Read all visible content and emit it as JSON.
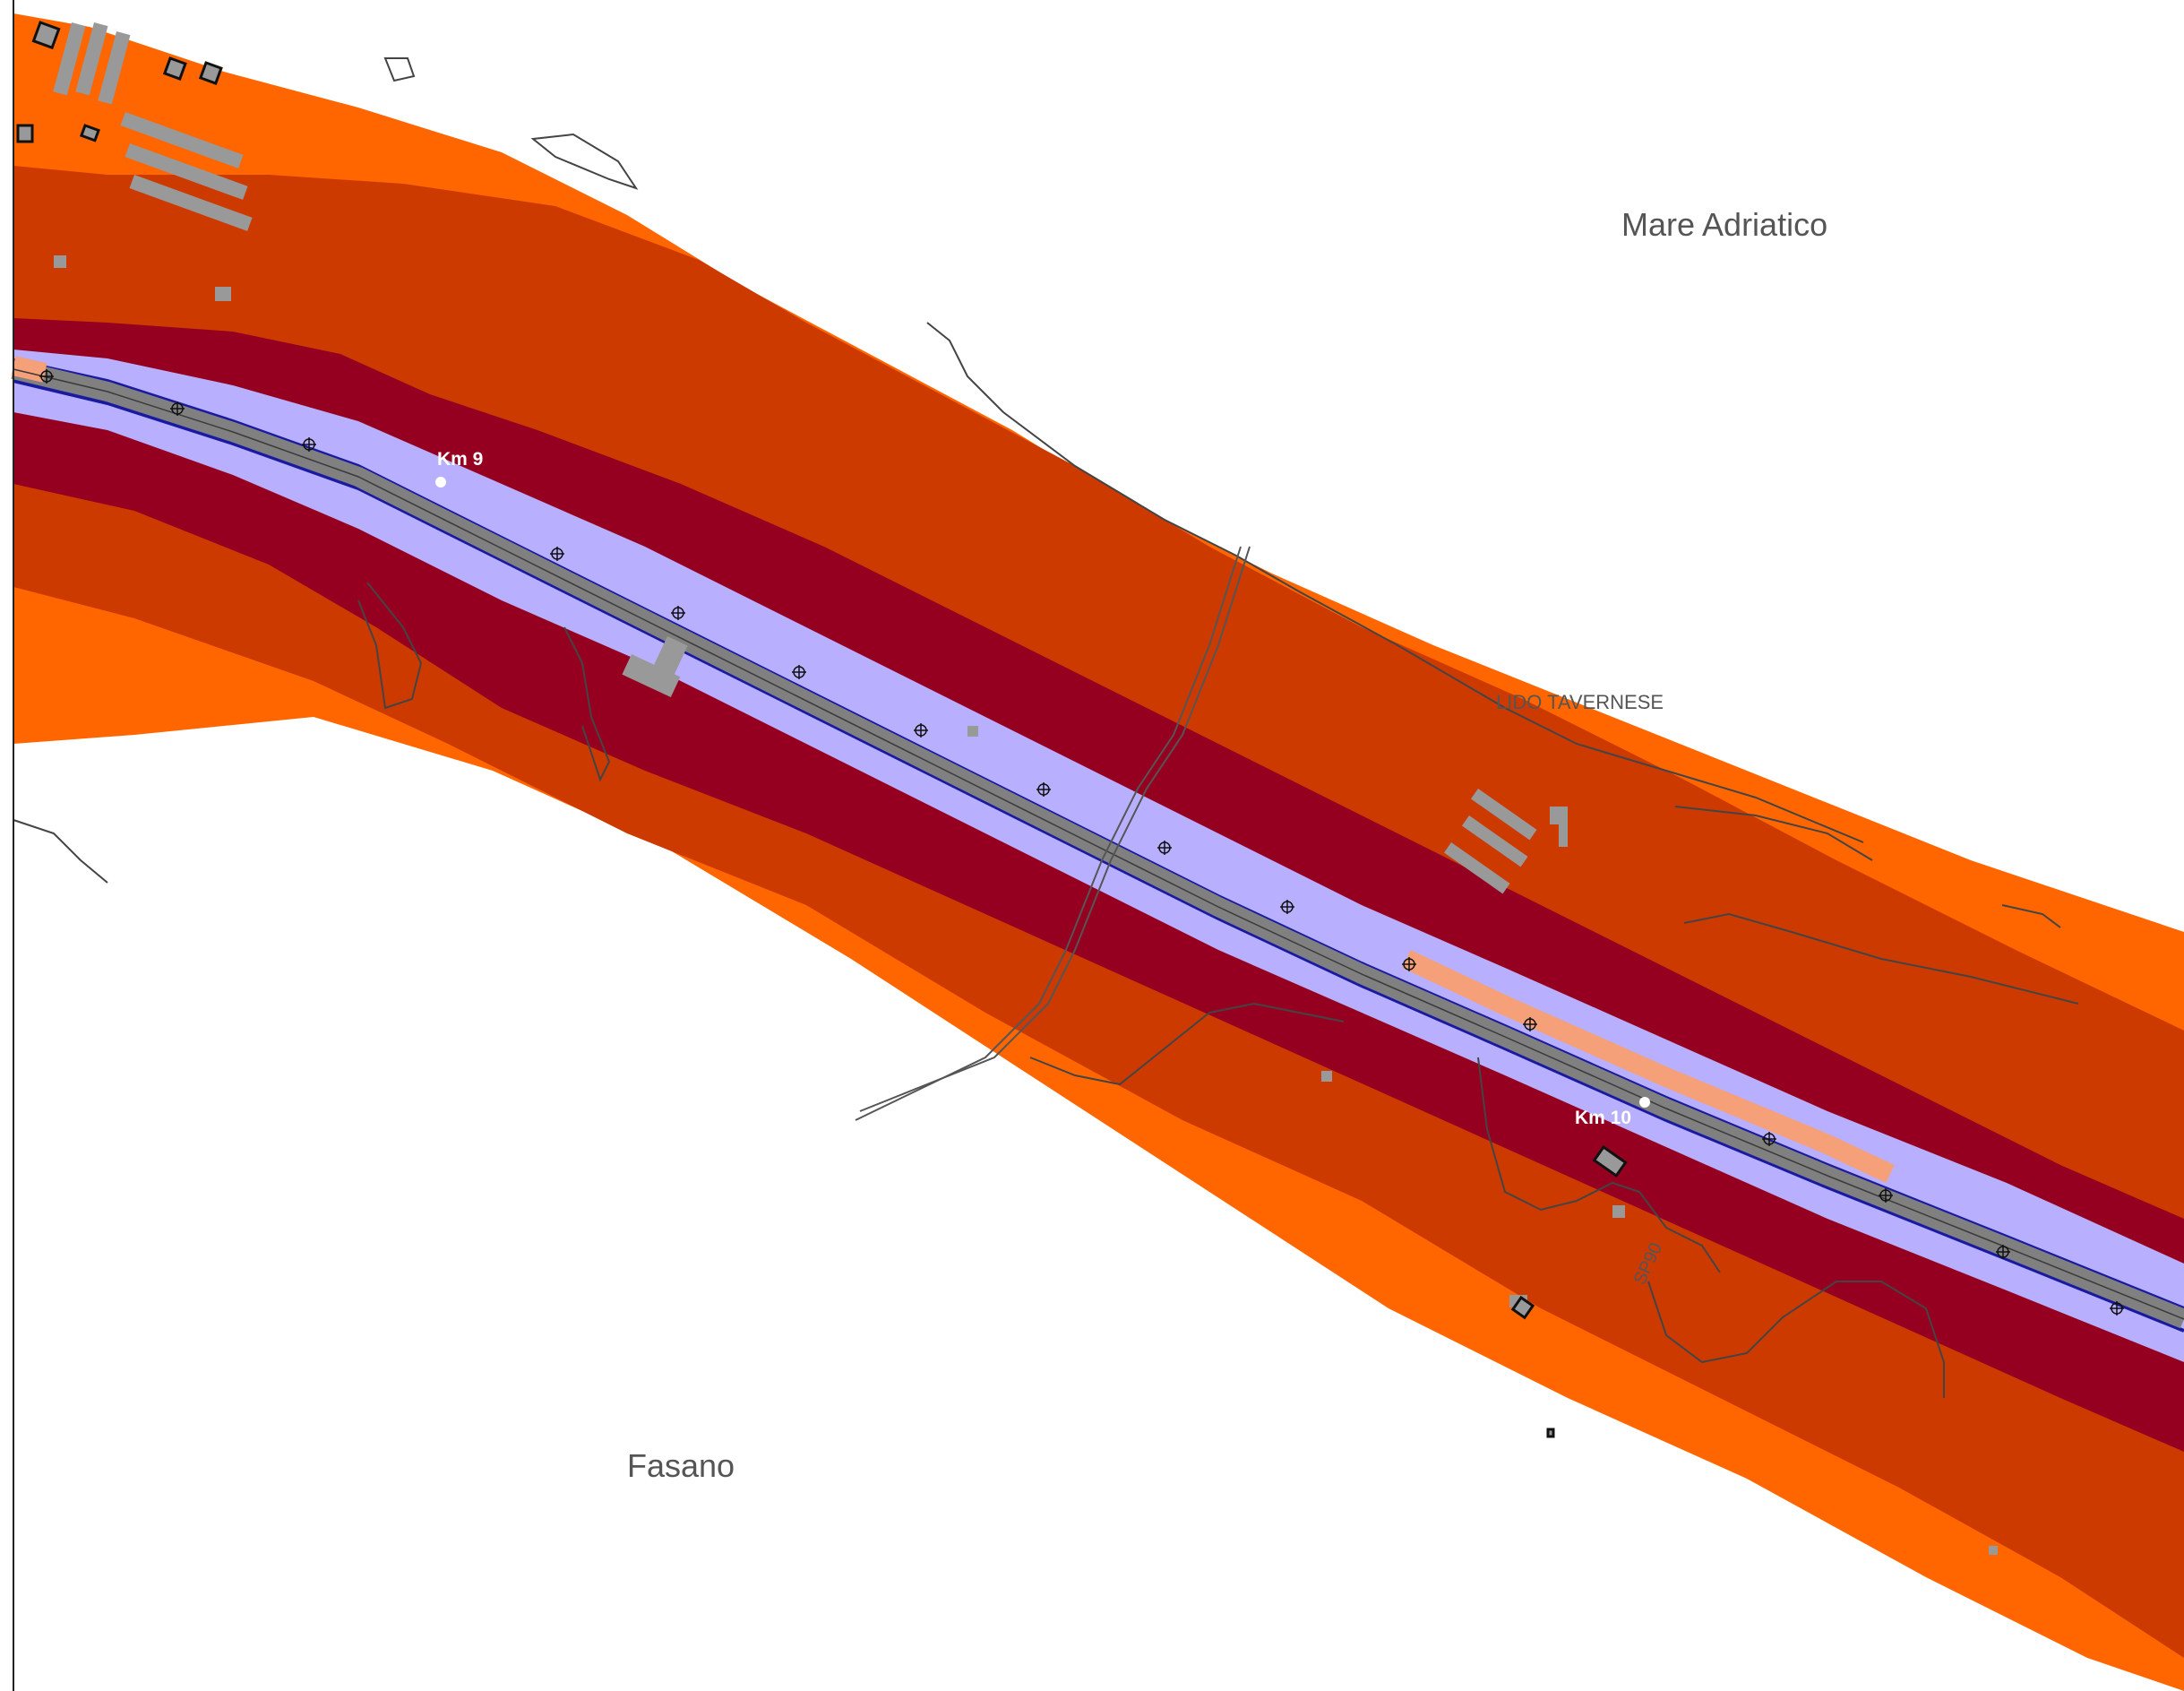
{
  "map": {
    "labels": {
      "sea": "Mare Adriatico",
      "locality": "LIDO TAVERNESE",
      "town": "Fasano",
      "road": "SP90"
    },
    "km_markers": [
      "Km 9",
      "Km 10"
    ],
    "colors": {
      "band_outer": "#ff6600",
      "band_mid": "#cc3a00",
      "band_inner": "#960020",
      "band_core": "#b8b0ff",
      "road": "#808080",
      "road_highlight": "#f5a078",
      "road_edge": "#1a1aa0",
      "buildings": "#999999",
      "contours": "#444444",
      "background": "#ffffff"
    },
    "icons": [
      "noise-receiver-icon",
      "km-point-icon"
    ]
  }
}
